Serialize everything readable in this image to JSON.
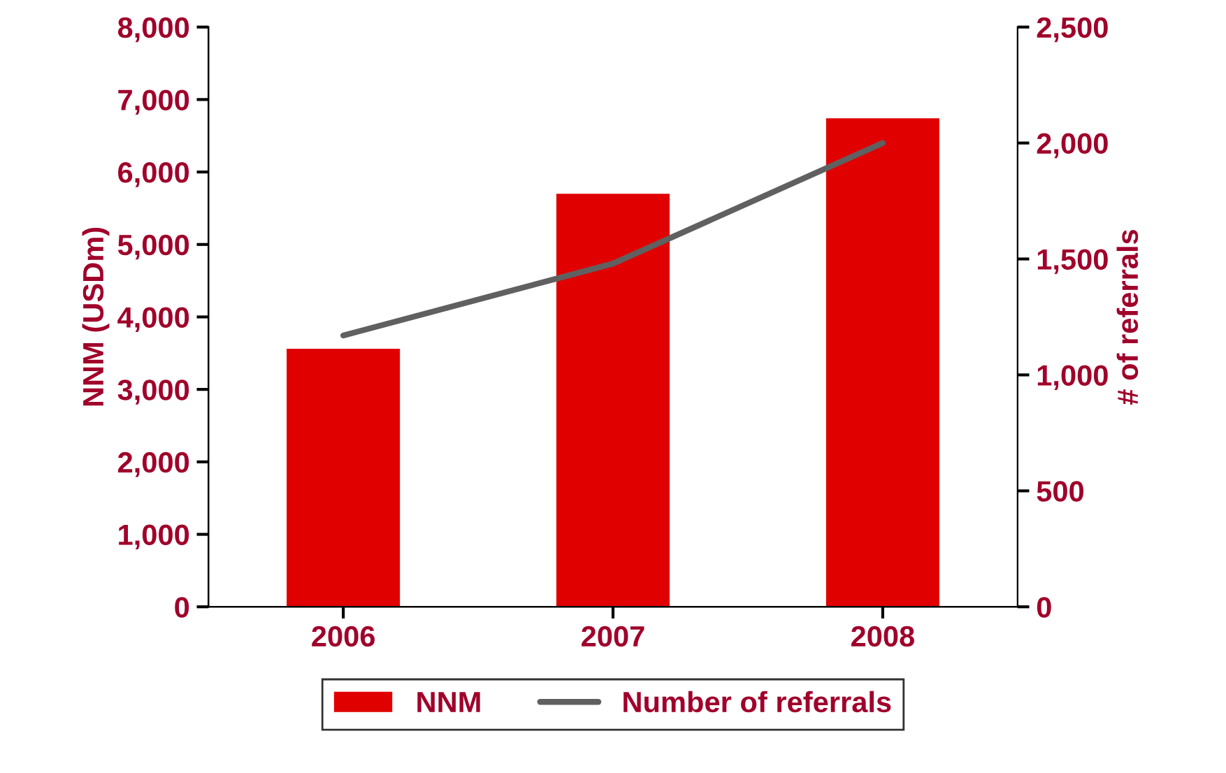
{
  "chart_data": {
    "type": "bar",
    "ylabel": "NNM (USDm)",
    "y2label": "# of referrals",
    "categories": [
      "2006",
      "2007",
      "2008"
    ],
    "series": [
      {
        "name": "NNM",
        "color": "#e00000",
        "values": [
          3560,
          5700,
          6740
        ]
      },
      {
        "name": "Number of referrals",
        "type": "line",
        "axis": "y2",
        "color": "#606060",
        "values": [
          1170,
          1480,
          2000
        ]
      }
    ],
    "ylim": [
      0,
      8000
    ],
    "yticks": [
      {
        "value": 0,
        "label": "0"
      },
      {
        "value": 1000,
        "label": "1,000"
      },
      {
        "value": 2000,
        "label": "2,000"
      },
      {
        "value": 3000,
        "label": "3,000"
      },
      {
        "value": 4000,
        "label": "4,000"
      },
      {
        "value": 5000,
        "label": "5,000"
      },
      {
        "value": 6000,
        "label": "6,000"
      },
      {
        "value": 7000,
        "label": "7,000"
      },
      {
        "value": 8000,
        "label": "8,000"
      }
    ],
    "y2lim": [
      0,
      2500
    ],
    "y2ticks": [
      {
        "value": 0,
        "label": "0"
      },
      {
        "value": 500,
        "label": "500"
      },
      {
        "value": 1000,
        "label": "1,000"
      },
      {
        "value": 1500,
        "label": "1,500"
      },
      {
        "value": 2000,
        "label": "2,000"
      },
      {
        "value": 2500,
        "label": "2,500"
      }
    ],
    "grid": false,
    "legend": "bottom",
    "marker": "none",
    "line_style": "solid"
  }
}
